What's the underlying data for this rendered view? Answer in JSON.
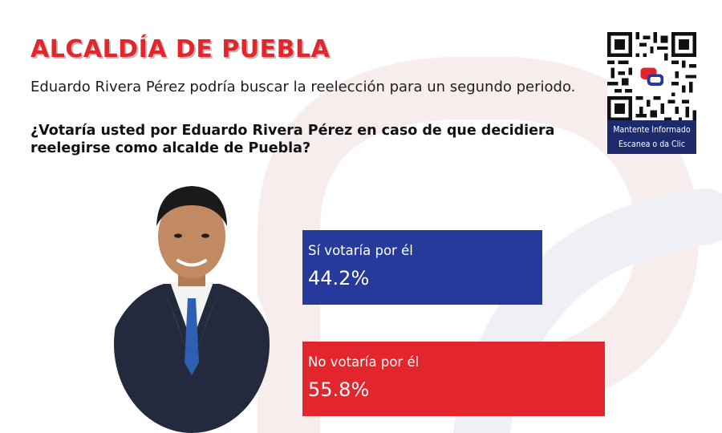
{
  "title": "ALCALDÍA DE PUEBLA",
  "subtitle": "Eduardo Rivera Pérez podría buscar la reelección para un segundo periodo.",
  "question": "¿Votaría usted por Eduardo Rivera Pérez en caso de que decidiera reelegirse como alcalde de Puebla?",
  "qr": {
    "caption_line1": "Mantente Informado",
    "caption_line2": "Escanea o da Clic"
  },
  "colors": {
    "title": "#e3262d",
    "yes": "#253a9b",
    "no": "#e3262d",
    "qr_caption_bg": "#1d2a6b"
  },
  "icons": {
    "qr": "qr-code-icon",
    "logo": "chat-bubbles-logo-icon"
  },
  "chart_data": {
    "type": "bar",
    "orientation": "horizontal",
    "categories": [
      "Sí votaría por él",
      "No votaría por él"
    ],
    "values": [
      44.2,
      55.8
    ],
    "value_labels": [
      "44.2%",
      "55.8%"
    ],
    "colors": [
      "#253a9b",
      "#e3262d"
    ],
    "title": "",
    "xlabel": "",
    "ylabel": ""
  }
}
